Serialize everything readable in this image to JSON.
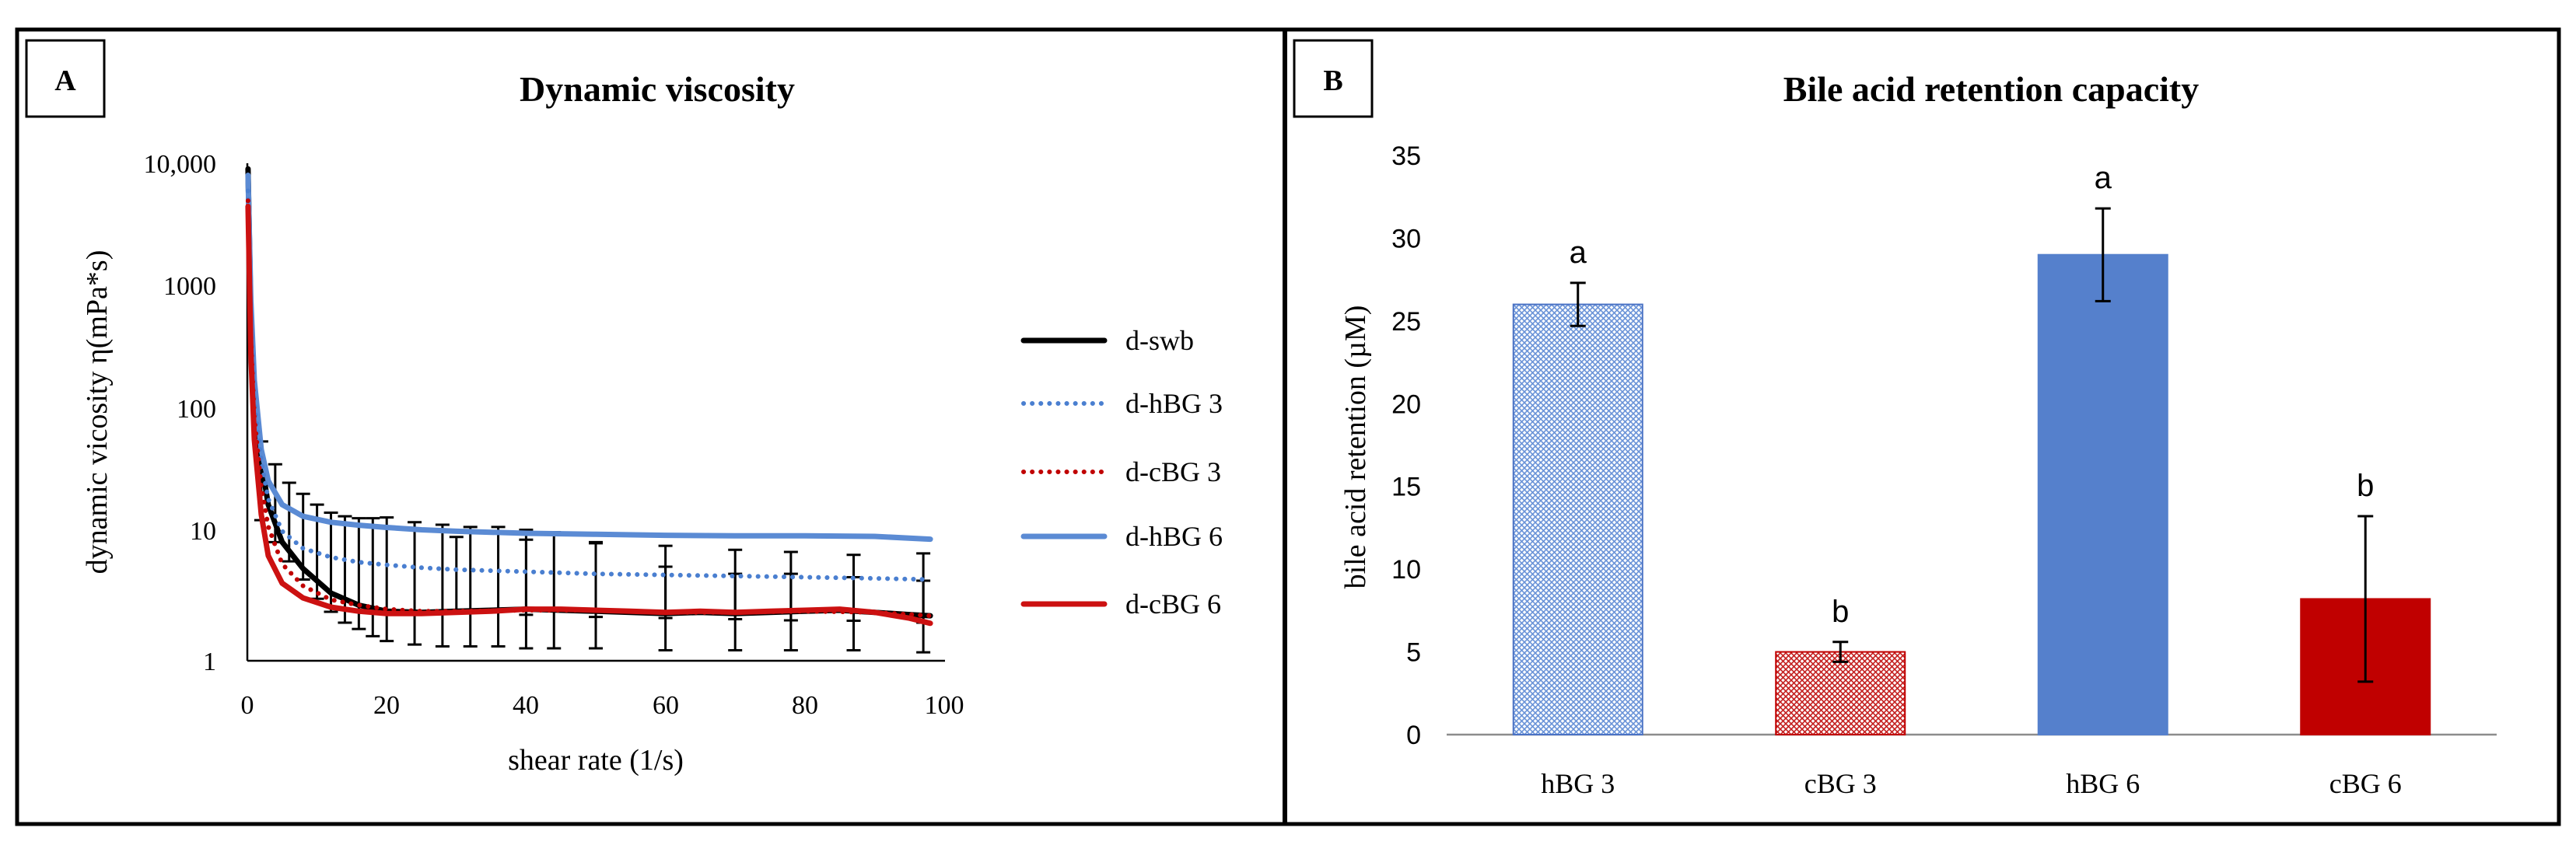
{
  "chart_data": [
    {
      "panel_label": "A",
      "type": "line",
      "title": "Dynamic viscosity",
      "xlabel": "shear rate (1/s)",
      "ylabel": "dynamic vicosity η(mPa*s)",
      "x_scale": "linear",
      "y_scale": "log",
      "xlim": [
        0,
        100
      ],
      "ylim": [
        1,
        10000
      ],
      "x_ticks": [
        0,
        20,
        40,
        60,
        80,
        100
      ],
      "x_tick_labels": [
        "0",
        "20",
        "40",
        "60",
        "80",
        "100"
      ],
      "y_ticks": [
        1,
        10,
        100,
        1000,
        10000
      ],
      "y_tick_labels": [
        "1",
        "10",
        "100",
        "1000",
        "10,000"
      ],
      "legend_position": "right",
      "series": [
        {
          "name": "d-swb",
          "color": "#000000",
          "style": "solid",
          "x": [
            0.1,
            0.5,
            1,
            2,
            3,
            5,
            8,
            12,
            16,
            20,
            25,
            30,
            35,
            40,
            45,
            50,
            55,
            60,
            65,
            70,
            75,
            80,
            85,
            90,
            95,
            98
          ],
          "y": [
            9000,
            600,
            150,
            40,
            18,
            9,
            5.5,
            3.5,
            2.8,
            2.5,
            2.45,
            2.5,
            2.55,
            2.6,
            2.55,
            2.5,
            2.45,
            2.4,
            2.45,
            2.4,
            2.45,
            2.5,
            2.55,
            2.45,
            2.35,
            2.3
          ],
          "error_bar_x": [
            2,
            4,
            6,
            8,
            10,
            12,
            14,
            16,
            18,
            20,
            24,
            28,
            32,
            36,
            40,
            44,
            50,
            60,
            70,
            78,
            87,
            97
          ],
          "error_bar_y": [
            30,
            20,
            14,
            10,
            7,
            5.5,
            4.5,
            4,
            3.5,
            3.2,
            3,
            2.9,
            2.9,
            2.9,
            2.8,
            2.8,
            2.8,
            2.7,
            2.7,
            2.7,
            2.7,
            2.6
          ],
          "error_bar_err": [
            28,
            18,
            13,
            12,
            11,
            10,
            10,
            10,
            10.5,
            11,
            10,
            9.5,
            9,
            9,
            8.5,
            8,
            6,
            3,
            2.3,
            2.3,
            2,
            1.8
          ]
        },
        {
          "name": "d-hBG 3",
          "color": "#4a7fd0",
          "style": "dotted",
          "x": [
            0.1,
            0.5,
            1,
            2,
            3,
            5,
            8,
            12,
            16,
            20,
            25,
            30,
            40,
            50,
            60,
            70,
            80,
            90,
            98
          ],
          "y": [
            6000,
            500,
            120,
            40,
            20,
            11,
            8,
            6.8,
            6.2,
            5.9,
            5.6,
            5.4,
            5.2,
            5.0,
            4.9,
            4.8,
            4.7,
            4.6,
            4.5
          ],
          "error_bar_x": [
            30,
            40,
            50,
            60,
            70,
            78,
            87,
            97
          ],
          "error_bar_y": [
            5.4,
            5.2,
            5.0,
            4.9,
            4.8,
            4.7,
            4.6,
            4.5
          ],
          "error_bar_err": [
            4.5,
            4.2,
            4.0,
            3.5,
            3.0,
            2.8,
            2.5,
            2.8
          ]
        },
        {
          "name": "d-cBG 3",
          "color": "#c00000",
          "style": "dotted",
          "x": [
            0.1,
            0.5,
            1,
            2,
            3,
            5,
            8,
            12,
            16,
            20,
            25,
            30,
            40,
            50,
            60,
            70,
            80,
            90,
            98
          ],
          "y": [
            5000,
            400,
            90,
            25,
            12,
            6,
            4,
            3.1,
            2.8,
            2.6,
            2.5,
            2.5,
            2.55,
            2.55,
            2.45,
            2.45,
            2.5,
            2.45,
            2.3
          ],
          "error_bar_x": [],
          "error_bar_y": [],
          "error_bar_err": []
        },
        {
          "name": "d-hBG 6",
          "color": "#5b8bd4",
          "style": "solid",
          "x": [
            0.1,
            0.5,
            1,
            2,
            3,
            5,
            8,
            12,
            16,
            20,
            25,
            30,
            40,
            50,
            60,
            70,
            80,
            90,
            98
          ],
          "y": [
            8000,
            800,
            180,
            50,
            28,
            18,
            14.5,
            13,
            12.3,
            11.8,
            11.3,
            11,
            10.6,
            10.4,
            10.2,
            10.1,
            10.1,
            10.0,
            9.5
          ],
          "error_bar_x": [],
          "error_bar_y": [],
          "error_bar_err": []
        },
        {
          "name": "d-cBG 6",
          "color": "#cc1111",
          "style": "solid",
          "x": [
            0.1,
            0.5,
            1,
            2,
            3,
            5,
            8,
            12,
            16,
            20,
            25,
            30,
            35,
            40,
            45,
            50,
            55,
            60,
            65,
            70,
            75,
            80,
            85,
            90,
            95,
            98
          ],
          "y": [
            4500,
            300,
            60,
            15,
            7,
            4.2,
            3.2,
            2.7,
            2.5,
            2.4,
            2.4,
            2.45,
            2.5,
            2.6,
            2.6,
            2.55,
            2.5,
            2.45,
            2.5,
            2.45,
            2.5,
            2.55,
            2.6,
            2.45,
            2.2,
            2.0
          ],
          "error_bar_x": [],
          "error_bar_y": [],
          "error_bar_err": []
        }
      ]
    },
    {
      "panel_label": "B",
      "type": "bar",
      "title": "Bile acid retention capacity",
      "xlabel": "",
      "ylabel": "bile acid retention (µM)",
      "ylim": [
        0,
        35
      ],
      "y_ticks": [
        0,
        5,
        10,
        15,
        20,
        25,
        30,
        35
      ],
      "y_tick_labels": [
        "0",
        "5",
        "10",
        "15",
        "20",
        "25",
        "30",
        "35"
      ],
      "categories": [
        "hBG 3",
        "cBG 3",
        "hBG 6",
        "cBG 6"
      ],
      "values": [
        26.0,
        5.0,
        29.0,
        8.2
      ],
      "errors": [
        1.3,
        0.6,
        2.8,
        5.0
      ],
      "significance_letters": [
        "a",
        "b",
        "a",
        "b"
      ],
      "bar_fills": [
        "hatched",
        "hatched",
        "solid",
        "solid"
      ],
      "bar_colors": [
        "#4a72c4",
        "#c00000",
        "#5580cc",
        "#c00000"
      ]
    }
  ]
}
